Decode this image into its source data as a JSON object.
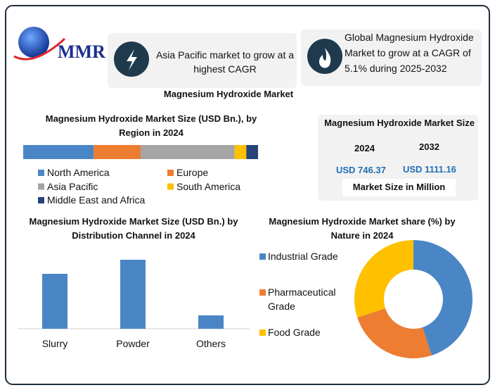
{
  "header": {
    "logo": "MMR",
    "card1": "Asia Pacific market to grow at a highest CAGR",
    "card2": "Global Magnesium Hydroxide Market to grow at a CAGR of 5.1% during 2025-2032",
    "title": "Magnesium Hydroxide Market"
  },
  "market_size": {
    "title": "Magnesium Hydroxide Market Size",
    "columns": [
      {
        "year": "2024",
        "value": "USD 746.37"
      },
      {
        "year": "2032",
        "value": "USD 1111.16"
      }
    ],
    "footer": "Market Size in Million"
  },
  "chart_data": [
    {
      "type": "stacked_bar",
      "title": "Magnesium Hydroxide Market  Size (USD Bn.), by Region in 2024",
      "series": [
        {
          "name": "North America",
          "color": "#4a86c6",
          "values": [
            30
          ]
        },
        {
          "name": "Europe",
          "color": "#ed7d31",
          "values": [
            20
          ]
        },
        {
          "name": "Asia Pacific",
          "color": "#a5a5a5",
          "values": [
            40
          ]
        },
        {
          "name": "South America",
          "color": "#ffc000",
          "values": [
            5
          ]
        },
        {
          "name": "Middle East and Africa",
          "color": "#264478",
          "values": [
            5
          ]
        }
      ]
    },
    {
      "type": "bar",
      "title": "Magnesium Hydroxide Market Size (USD Bn.) by Distribution Channel in 2024",
      "categories": [
        "Slurry",
        "Powder",
        "Others"
      ],
      "values": [
        78,
        98,
        19
      ],
      "color": "#4a86c6"
    },
    {
      "type": "donut",
      "title": "Magnesium Hydroxide Market share (%) by Nature in 2024",
      "categories": [
        "Industrial Grade",
        "Pharmaceutical Grade",
        "Food Grade"
      ],
      "values": [
        45,
        25,
        30
      ],
      "colors": [
        "#4a86c6",
        "#ed7d31",
        "#ffc000"
      ]
    }
  ]
}
